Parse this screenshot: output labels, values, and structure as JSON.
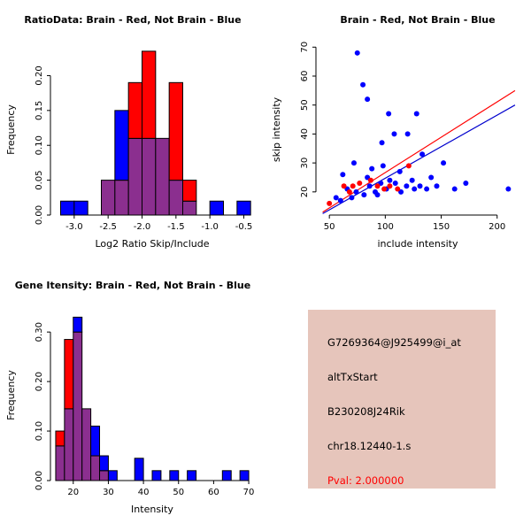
{
  "app": {
    "background": "#ffffff"
  },
  "colors": {
    "brain": "#ff0000",
    "not_brain": "#0000ff",
    "overlap": "#8b2f8f",
    "axis": "#000000"
  },
  "chart_data": [
    {
      "id": "ratio_hist",
      "type": "bar",
      "variant": "overlaid-histogram",
      "title": "RatioData: Brain - Red, Not Brain - Blue",
      "xlabel": "Log2 Ratio Skip/Include",
      "ylabel": "Frequency",
      "xlim": [
        -3.35,
        -0.35
      ],
      "ylim": [
        0,
        0.245
      ],
      "xticks": [
        "-3.0",
        "-2.5",
        "-2.0",
        "-1.5",
        "-1.0",
        "-0.5"
      ],
      "yticks": [
        "0.00",
        "0.05",
        "0.10",
        "0.15",
        "0.20"
      ],
      "grid": false,
      "bin_start": -3.2,
      "bin_width": 0.2,
      "series": [
        {
          "name": "Not Brain",
          "color": "#0000ff",
          "values": [
            0.02,
            0.02,
            0,
            0.05,
            0.15,
            0.11,
            0.11,
            0.11,
            0.05,
            0.02,
            0,
            0.02,
            0,
            0.02
          ]
        },
        {
          "name": "Brain",
          "color": "#ff0000",
          "values": [
            0,
            0,
            0,
            0.05,
            0.05,
            0.19,
            0.235,
            0.11,
            0.19,
            0.05,
            0,
            0,
            0,
            0
          ]
        }
      ]
    },
    {
      "id": "scatter",
      "type": "scatter",
      "title": "Brain - Red, Not Brain - Blue",
      "xlabel": "include intensity",
      "ylabel": "skip intensity",
      "xlim": [
        38,
        220
      ],
      "ylim": [
        12,
        71
      ],
      "xticks": [
        "50",
        "100",
        "150",
        "200"
      ],
      "yticks": [
        "20",
        "30",
        "40",
        "50",
        "60",
        "70"
      ],
      "grid": false,
      "series": [
        {
          "name": "Not Brain",
          "color": "#0000ff",
          "points": [
            [
              75,
              68
            ],
            [
              80,
              57
            ],
            [
              84,
              52
            ],
            [
              103,
              47
            ],
            [
              128,
              47
            ],
            [
              108,
              40
            ],
            [
              120,
              40
            ],
            [
              97,
              37
            ],
            [
              133,
              33
            ],
            [
              152,
              30
            ],
            [
              72,
              30
            ],
            [
              98,
              29
            ],
            [
              88,
              28
            ],
            [
              113,
              27
            ],
            [
              62,
              26
            ],
            [
              84,
              25
            ],
            [
              104,
              24
            ],
            [
              124,
              24
            ],
            [
              141,
              25
            ],
            [
              96,
              23
            ],
            [
              109,
              23
            ],
            [
              119,
              22
            ],
            [
              131,
              22
            ],
            [
              146,
              22
            ],
            [
              162,
              21
            ],
            [
              172,
              23
            ],
            [
              210,
              21
            ],
            [
              66,
              21
            ],
            [
              74,
              20
            ],
            [
              81,
              19
            ],
            [
              91,
              20
            ],
            [
              101,
              21
            ],
            [
              56,
              18
            ],
            [
              114,
              20
            ],
            [
              126,
              21
            ],
            [
              137,
              21
            ],
            [
              60,
              17
            ],
            [
              70,
              18
            ],
            [
              93,
              19
            ],
            [
              86,
              22
            ]
          ]
        },
        {
          "name": "Brain",
          "color": "#ff0000",
          "points": [
            [
              50,
              16
            ],
            [
              63,
              22
            ],
            [
              71,
              22
            ],
            [
              77,
              23
            ],
            [
              87,
              24
            ],
            [
              93,
              22
            ],
            [
              99,
              21
            ],
            [
              104,
              22
            ],
            [
              111,
              21
            ],
            [
              121,
              29
            ],
            [
              68,
              20
            ]
          ]
        }
      ],
      "lines": [
        {
          "name": "brain-fit-line",
          "color": "#ff0000",
          "x1": 44,
          "y1": 13,
          "x2": 216,
          "y2": 55
        },
        {
          "name": "notbrain-fit-line",
          "color": "#0000cd",
          "x1": 44,
          "y1": 12.5,
          "x2": 216,
          "y2": 50
        }
      ]
    },
    {
      "id": "gene_hist",
      "type": "bar",
      "variant": "overlaid-histogram",
      "title": "Gene Itensity: Brain - Red, Not Brain - Blue",
      "xlabel": "Intensity",
      "ylabel": "Frequency",
      "xlim": [
        13.5,
        71.5
      ],
      "ylim": [
        0,
        0.345
      ],
      "xticks": [
        "20",
        "30",
        "40",
        "50",
        "60",
        "70"
      ],
      "yticks": [
        "0.00",
        "0.10",
        "0.20",
        "0.30"
      ],
      "grid": false,
      "bin_start": 15,
      "bin_width": 2.5,
      "series": [
        {
          "name": "Not Brain",
          "color": "#0000ff",
          "values": [
            0.07,
            0.145,
            0.33,
            0.145,
            0.11,
            0.05,
            0.02,
            0,
            0,
            0.045,
            0,
            0.02,
            0,
            0.02,
            0,
            0.02,
            0,
            0,
            0,
            0.02,
            0,
            0.02
          ]
        },
        {
          "name": "Brain",
          "color": "#ff0000",
          "values": [
            0.1,
            0.285,
            0.3,
            0.145,
            0.05,
            0.02,
            0,
            0,
            0,
            0,
            0,
            0,
            0,
            0,
            0,
            0,
            0,
            0,
            0,
            0,
            0,
            0
          ]
        }
      ]
    }
  ],
  "info_box": {
    "bg": "#e6c5bb",
    "lines": [
      {
        "text": "G7269364@J925499@i_at",
        "color": "#000000"
      },
      {
        "text": "altTxStart",
        "color": "#000000"
      },
      {
        "text": "B230208J24Rik",
        "color": "#000000"
      },
      {
        "text": "chr18.12440-1.s",
        "color": "#000000"
      },
      {
        "text": "Pval: 2.000000",
        "color": "#ff0000"
      }
    ]
  }
}
